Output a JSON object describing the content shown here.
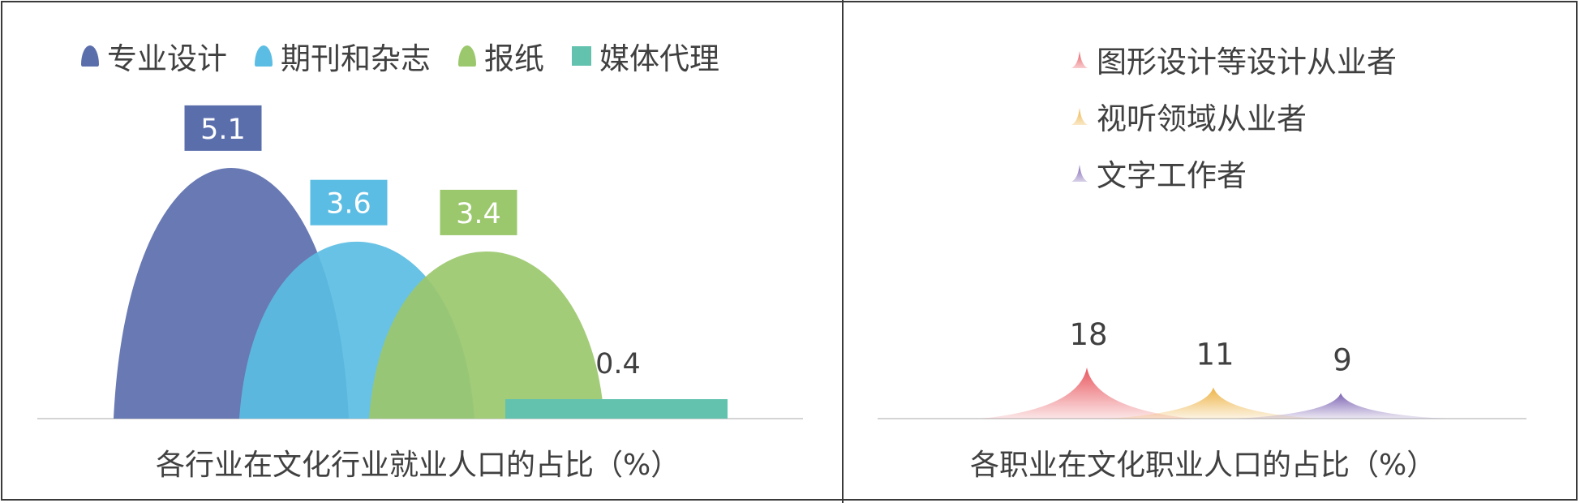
{
  "chart_data": [
    {
      "type": "area",
      "title": "各行业在文化行业就业人口的占比（%）",
      "series": [
        {
          "name": "专业设计",
          "value": 5.1,
          "label": "5.1",
          "color": "#5B6EAC"
        },
        {
          "name": "期刊和杂志",
          "value": 3.6,
          "label": "3.6",
          "color": "#5BBDE3"
        },
        {
          "name": "报纸",
          "value": 3.4,
          "label": "3.4",
          "color": "#9BC86C"
        },
        {
          "name": "媒体代理",
          "value": 0.4,
          "label": "0.4",
          "color": "#62C2AE"
        }
      ],
      "legend_position": "top",
      "grid": false
    },
    {
      "type": "area",
      "title": "各职业在文化职业人口的占比（%）",
      "series": [
        {
          "name": "图形设计等设计从业者",
          "value": 18,
          "label": "18",
          "color": "#E8585F"
        },
        {
          "name": "视听领域从业者",
          "value": 11,
          "label": "11",
          "color": "#EDB345"
        },
        {
          "name": "文字工作者",
          "value": 9,
          "label": "9",
          "color": "#7E65B3"
        }
      ],
      "legend_position": "top-left",
      "grid": false
    }
  ]
}
